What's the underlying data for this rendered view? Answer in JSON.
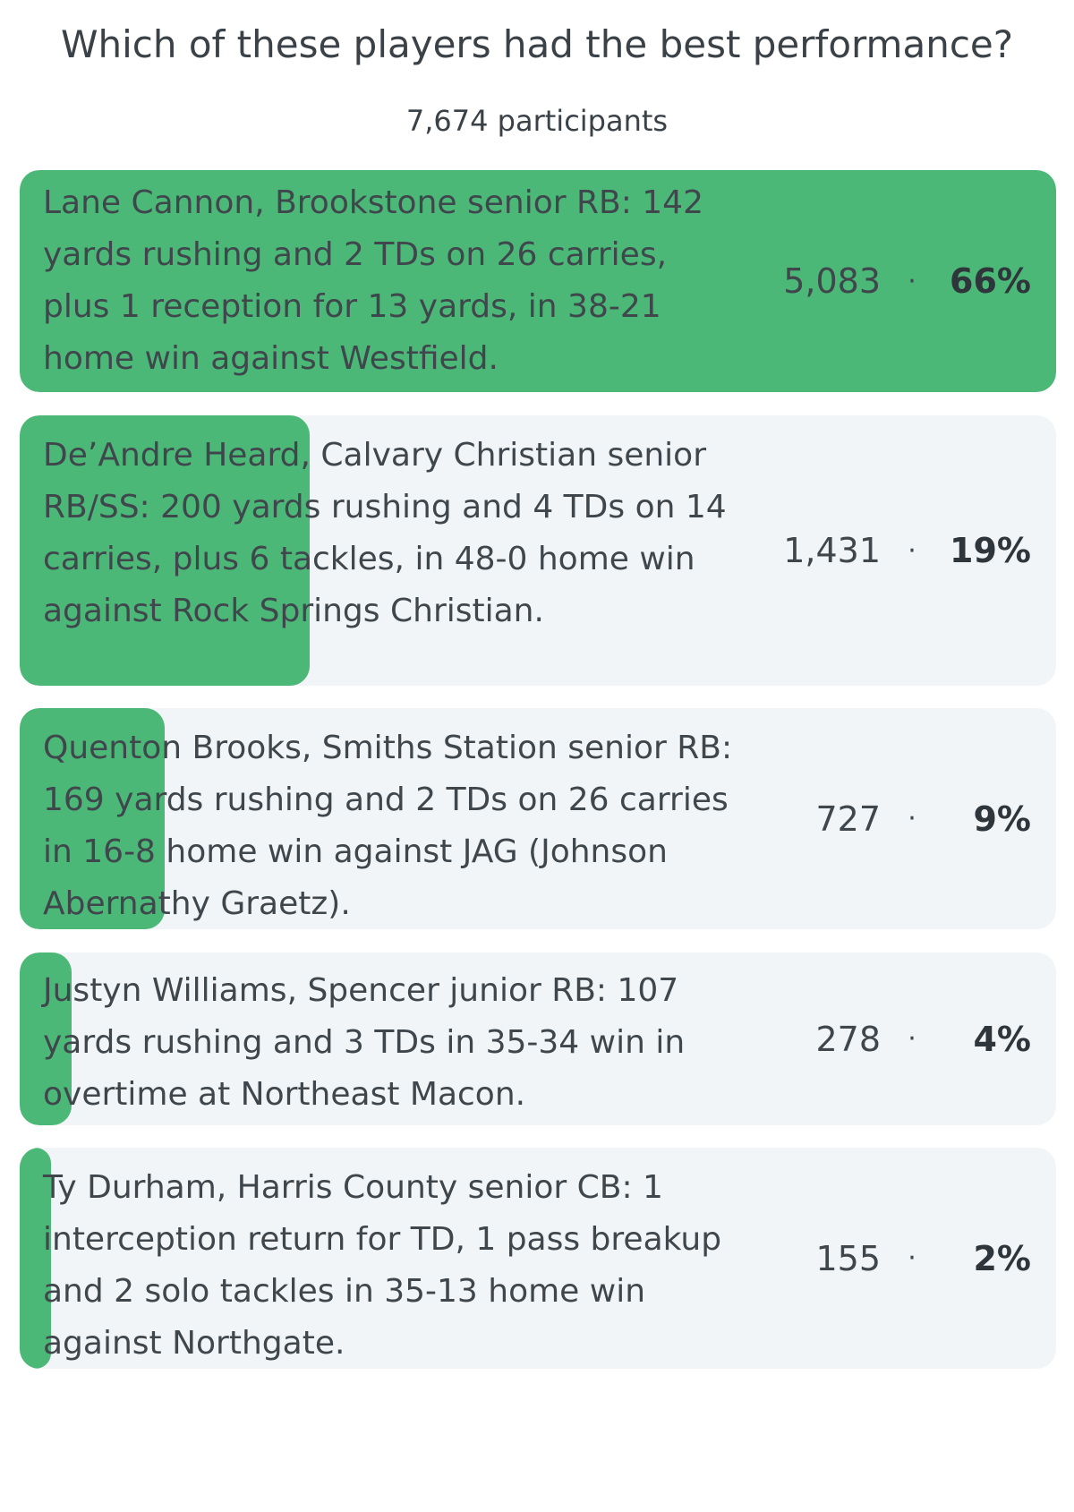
{
  "poll": {
    "question": "Which of these players had the best performance?",
    "participants": "7,674 participants",
    "separator": "·",
    "options": [
      {
        "text": "Lane Cannon, Brookstone senior RB: 142 yards rushing and 2 TDs on 26 carries, plus 1 reception for 13 yards, in 38-21 home win against Westfield.",
        "votes": "5,083",
        "percent_label": "66%",
        "fraction": 1.0
      },
      {
        "text": "De’Andre Heard, Calvary Christian senior RB/SS: 200 yards rushing and 4 TDs on 14 carries, plus 6 tackles, in 48-0 home win against Rock Springs Christian.",
        "votes": "1,431",
        "percent_label": "19%",
        "fraction": 0.28
      },
      {
        "text": "Quenton Brooks, Smiths Station senior RB: 169 yards rushing and 2 TDs on 26 carries in 16-8 home win against JAG (Johnson Abernathy Graetz).",
        "votes": "727",
        "percent_label": "9%",
        "fraction": 0.14
      },
      {
        "text": "Justyn Williams, Spencer junior RB: 107 yards rushing and 3 TDs in 35-34 win in overtime at Northeast Macon.",
        "votes": "278",
        "percent_label": "4%",
        "fraction": 0.05
      },
      {
        "text": "Ty Durham, Harris County senior CB: 1 interception return for TD, 1 pass breakup and 2 solo tackles in 35-13 home win against Northgate.",
        "votes": "155",
        "percent_label": "2%",
        "fraction": 0.03
      }
    ]
  },
  "colors": {
    "fill": "#4cb877",
    "card_background": "#f2f5f7",
    "text": "#3f474d"
  }
}
